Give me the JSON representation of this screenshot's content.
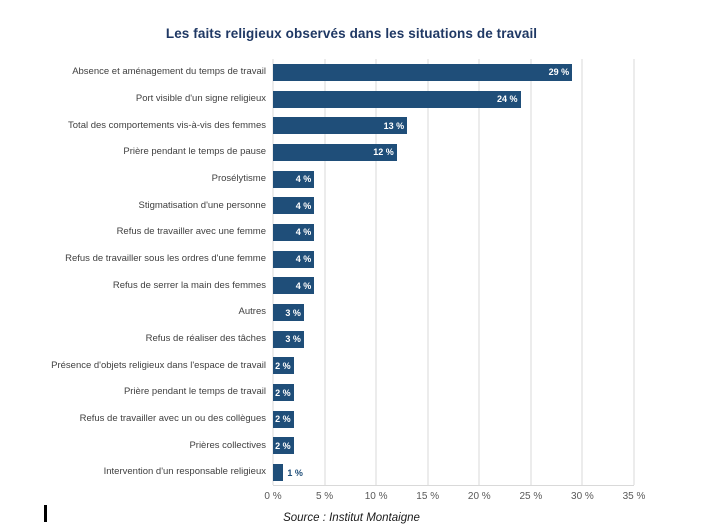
{
  "title": "Les faits religieux observés dans les situations de travail",
  "source": "Source : Institut Montaigne",
  "colors": {
    "bar": "#1F4E79",
    "title": "#1F3864",
    "grid": "#D9D9D9",
    "axis_text": "#595959",
    "category_text": "#404040",
    "value_text_inside": "#FFFFFF"
  },
  "chart_data": {
    "type": "bar",
    "orientation": "horizontal",
    "title": "Les faits religieux observés dans les situations de travail",
    "categories": [
      "Absence et aménagement du temps de travail",
      "Port visible d'un signe religieux",
      "Total des comportements vis-à-vis des femmes",
      "Prière pendant le temps de pause",
      "Prosélytisme",
      "Stigmatisation d'une personne",
      "Refus de travailler avec une femme",
      "Refus de travailler sous les ordres d'une femme",
      "Refus de serrer la main des femmes",
      "Autres",
      "Refus de réaliser des tâches",
      "Présence d'objets religieux dans l'espace de travail",
      "Prière pendant le temps de travail",
      "Refus de travailler avec un ou des collègues",
      "Prières collectives",
      "Intervention d'un responsable religieux"
    ],
    "values": [
      29,
      24,
      13,
      12,
      4,
      4,
      4,
      4,
      4,
      3,
      3,
      2,
      2,
      2,
      2,
      1
    ],
    "value_labels": [
      "29 %",
      "24 %",
      "13 %",
      "12 %",
      "4 %",
      "4 %",
      "4 %",
      "4 %",
      "4 %",
      "3 %",
      "3 %",
      "2 %",
      "2 %",
      "2 %",
      "2 %",
      "1 %"
    ],
    "x_ticks": [
      "0 %",
      "5 %",
      "10 %",
      "15 %",
      "20 %",
      "25 %",
      "30 %",
      "35 %"
    ],
    "xlim": [
      0,
      35
    ],
    "grid": "vertical",
    "legend": "none",
    "xlabel": "",
    "ylabel": ""
  }
}
